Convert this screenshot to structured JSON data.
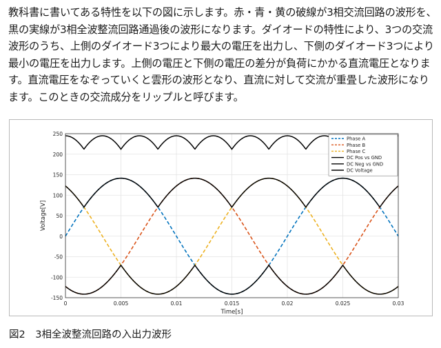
{
  "paragraph": {
    "lines": [
      "教科書に書いてある特性を以下の図に示します。赤・青・黄の破線が3相交流回路の波形を、",
      "黒の実線が3相全波整流回路通過後の波形になります。ダイオードの特性により、3つの交流",
      "波形のうち、上側のダイオード3つにより最大の電圧を出力し、下側のダイオード3つにより",
      "最小の電圧を出力します。上側の電圧と下側の電圧の差分が負荷にかかる直流電圧となりま",
      "す。直流電圧をなぞっていくと雲形の波形となり、直流に対して交流が重畳した波形になり",
      "ます。このときの交流成分をリップルと呼びます。"
    ]
  },
  "caption": "図2　3相全波整流回路の入出力波形",
  "chart_data": {
    "type": "line",
    "xlabel": "Time[s]",
    "ylabel": "Voltage[V]",
    "xlim": [
      0,
      0.03
    ],
    "ylim": [
      -150,
      250
    ],
    "x_ticks": [
      "0",
      "0.005",
      "0.01",
      "0.015",
      "0.02",
      "0.025",
      "0.03"
    ],
    "y_ticks": [
      "-150",
      "-100",
      "-50",
      "0",
      "50",
      "100",
      "150",
      "200",
      "250"
    ],
    "grid": true,
    "legend_position": "top-right",
    "amplitude": 141.4,
    "frequency_hz": 50,
    "series": [
      {
        "name": "Phase A",
        "color": "#0072BD",
        "style": "dashed",
        "phase_deg": 0
      },
      {
        "name": "Phase B",
        "color": "#D95319",
        "style": "dashed",
        "phase_deg": -120
      },
      {
        "name": "Phase C",
        "color": "#EDB120",
        "style": "dashed",
        "phase_deg": 120
      },
      {
        "name": "DC Pos vs GND",
        "color": "#000000",
        "style": "solid",
        "kind": "max"
      },
      {
        "name": "DC Neg vs GND",
        "color": "#000000",
        "style": "solid",
        "kind": "min"
      },
      {
        "name": "DC Voltage",
        "color": "#000000",
        "style": "solid",
        "kind": "diff"
      }
    ]
  }
}
